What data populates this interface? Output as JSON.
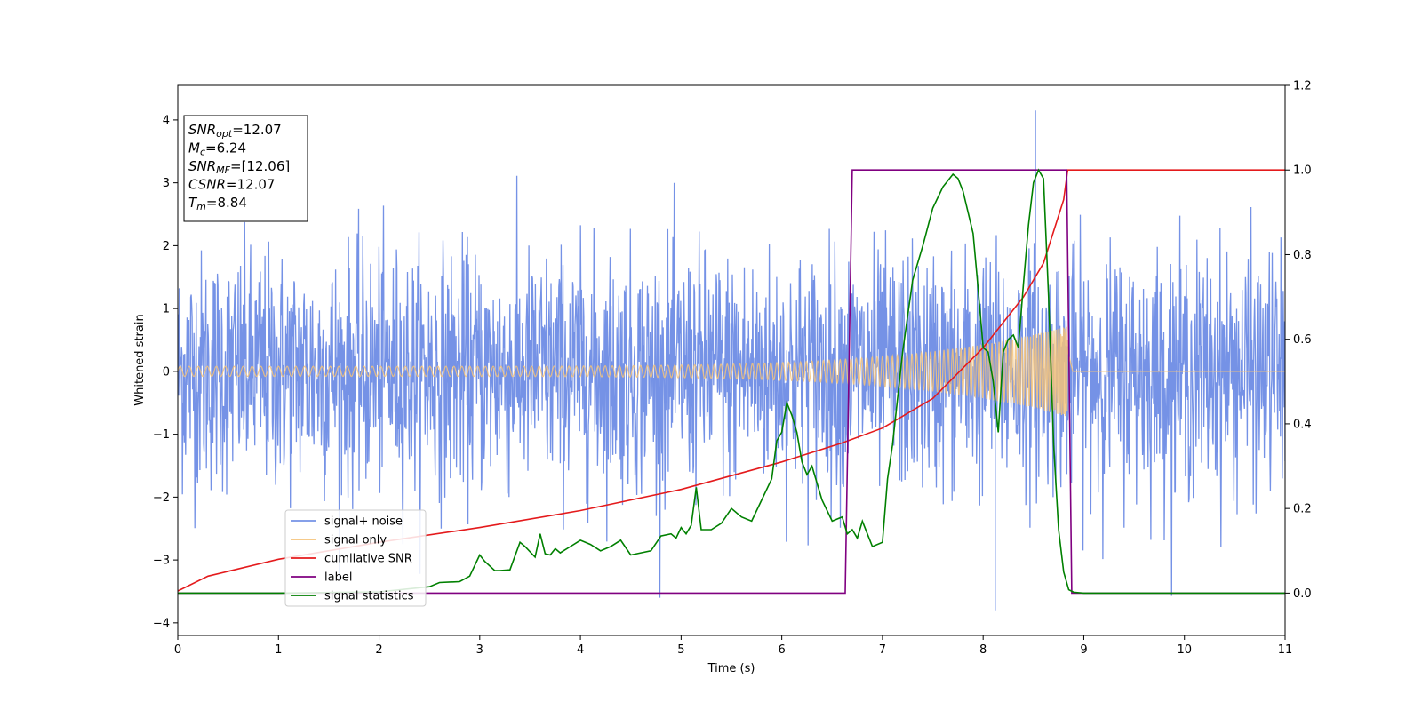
{
  "chart_data": {
    "type": "line",
    "title": "",
    "xlabel": "Time (s)",
    "ylabel": "Whitened strain",
    "xlim": [
      0,
      11
    ],
    "ylim": [
      -4.2,
      4.55
    ],
    "y2lim": [
      -0.1,
      1.2
    ],
    "x_ticks": [
      "0",
      "1",
      "2",
      "3",
      "4",
      "5",
      "6",
      "7",
      "8",
      "9",
      "10",
      "11"
    ],
    "y_ticks": [
      "4",
      "3",
      "2",
      "1",
      "0",
      "−1",
      "−2",
      "−3",
      "−4"
    ],
    "y2_ticks": [
      "1.2",
      "1.0",
      "0.8",
      "0.6",
      "0.4",
      "0.2",
      "0.0"
    ],
    "grid": false,
    "legend_position": "lower-left",
    "annotation": {
      "lines": [
        {
          "base": "SNR",
          "sub": "opt",
          "rest": "=12.07"
        },
        {
          "base": "M",
          "sub": "c",
          "rest": "=6.24"
        },
        {
          "base": "SNR",
          "sub": "MF",
          "rest": "=[12.06]"
        },
        {
          "base": "CSNR",
          "sub": "",
          "rest": "=12.07"
        },
        {
          "base": "T",
          "sub": "m",
          "rest": "=8.84"
        }
      ]
    },
    "series": [
      {
        "name": "signal+ noise",
        "color": "#7592e6",
        "axis": "left",
        "kind": "noise",
        "typical_amplitude": 1.4,
        "peak": [
          8.52,
          4.15
        ],
        "minimum": [
          8.12,
          -3.8
        ]
      },
      {
        "name": "signal only",
        "color": "#f5c37a",
        "axis": "left",
        "kind": "chirp",
        "start_amplitude": 0.08,
        "end_amplitude": 0.72,
        "end_time": 8.84
      },
      {
        "name": "cumilative SNR",
        "color": "#e41a1c",
        "axis": "right",
        "x": [
          0,
          0.3,
          1,
          2,
          3,
          4,
          5,
          6,
          6.6,
          7,
          7.5,
          8,
          8.4,
          8.6,
          8.8,
          8.84,
          11
        ],
        "y": [
          0.005,
          0.04,
          0.08,
          0.12,
          0.155,
          0.195,
          0.245,
          0.31,
          0.355,
          0.39,
          0.46,
          0.58,
          0.7,
          0.78,
          0.93,
          1.0,
          1.0
        ]
      },
      {
        "name": "label",
        "color": "#800080",
        "axis": "right",
        "x": [
          0,
          6.63,
          6.7,
          8.83,
          8.88,
          11
        ],
        "y": [
          0,
          0,
          1.0,
          1.0,
          0,
          0
        ]
      },
      {
        "name": "signal statistics",
        "color": "#008000",
        "axis": "right",
        "x": [
          0,
          1,
          2,
          2.5,
          2.6,
          2.8,
          2.9,
          3.0,
          3.05,
          3.15,
          3.2,
          3.3,
          3.4,
          3.45,
          3.55,
          3.6,
          3.65,
          3.7,
          3.75,
          3.8,
          3.9,
          4.0,
          4.1,
          4.2,
          4.3,
          4.4,
          4.5,
          4.6,
          4.7,
          4.8,
          4.9,
          4.95,
          5.0,
          5.05,
          5.1,
          5.15,
          5.2,
          5.3,
          5.4,
          5.5,
          5.6,
          5.7,
          5.8,
          5.9,
          5.95,
          6.0,
          6.05,
          6.1,
          6.15,
          6.2,
          6.25,
          6.3,
          6.4,
          6.5,
          6.6,
          6.65,
          6.7,
          6.75,
          6.8,
          6.85,
          6.9,
          7.0,
          7.05,
          7.1,
          7.2,
          7.3,
          7.4,
          7.5,
          7.6,
          7.7,
          7.75,
          7.8,
          7.85,
          7.9,
          7.95,
          8.0,
          8.05,
          8.1,
          8.15,
          8.2,
          8.25,
          8.3,
          8.35,
          8.4,
          8.45,
          8.5,
          8.55,
          8.6,
          8.65,
          8.7,
          8.75,
          8.8,
          8.85,
          8.9,
          9.0,
          11
        ],
        "y": [
          0,
          0,
          0.003,
          0.015,
          0.025,
          0.027,
          0.04,
          0.09,
          0.075,
          0.053,
          0.053,
          0.055,
          0.12,
          0.11,
          0.085,
          0.14,
          0.093,
          0.09,
          0.105,
          0.095,
          0.11,
          0.125,
          0.115,
          0.1,
          0.11,
          0.125,
          0.09,
          0.095,
          0.1,
          0.135,
          0.14,
          0.13,
          0.155,
          0.14,
          0.16,
          0.25,
          0.15,
          0.15,
          0.165,
          0.2,
          0.18,
          0.17,
          0.22,
          0.27,
          0.36,
          0.38,
          0.45,
          0.42,
          0.38,
          0.31,
          0.28,
          0.3,
          0.22,
          0.17,
          0.18,
          0.14,
          0.15,
          0.13,
          0.17,
          0.14,
          0.11,
          0.12,
          0.27,
          0.35,
          0.57,
          0.74,
          0.82,
          0.91,
          0.96,
          0.99,
          0.98,
          0.95,
          0.9,
          0.85,
          0.72,
          0.58,
          0.57,
          0.5,
          0.38,
          0.57,
          0.6,
          0.61,
          0.58,
          0.73,
          0.87,
          0.97,
          1.0,
          0.98,
          0.7,
          0.35,
          0.15,
          0.05,
          0.008,
          0.002,
          0,
          0
        ]
      }
    ]
  }
}
